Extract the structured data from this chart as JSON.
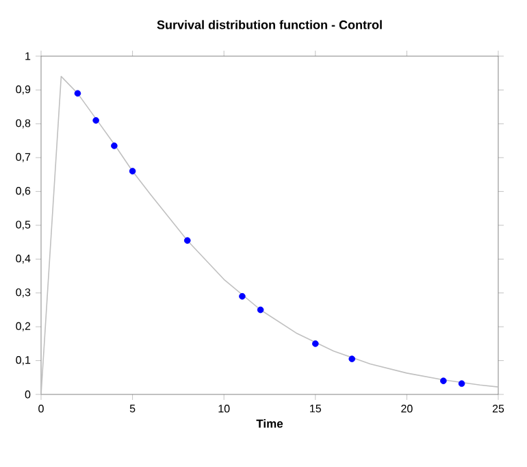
{
  "chart_data": {
    "type": "scatter",
    "title": "Survival distribution function - Control",
    "xlabel": "Time",
    "xlim": [
      0,
      25
    ],
    "xticks": [
      0,
      5,
      10,
      15,
      20,
      25
    ],
    "ylim": [
      0,
      1
    ],
    "yticks": [
      0,
      {
        "value": 0.1,
        "label": "0,1"
      },
      {
        "value": 0.2,
        "label": "0,2"
      },
      {
        "value": 0.3,
        "label": "0,3"
      },
      {
        "value": 0.4,
        "label": "0,4"
      },
      {
        "value": 0.5,
        "label": "0,5"
      },
      {
        "value": 0.6,
        "label": "0,6"
      },
      {
        "value": 0.7,
        "label": "0,7"
      },
      {
        "value": 0.8,
        "label": "0,8"
      },
      {
        "value": 0.9,
        "label": "0,9"
      },
      1
    ],
    "grid": false,
    "series": [
      {
        "type": "line",
        "color": "#c0c0c0",
        "marker": "none",
        "x": [
          0,
          1.1,
          2,
          3,
          4,
          5,
          6,
          8,
          10,
          12,
          14,
          16,
          18,
          20,
          22,
          24,
          25
        ],
        "values": [
          0,
          0.94,
          0.89,
          0.815,
          0.74,
          0.66,
          0.59,
          0.455,
          0.34,
          0.25,
          0.18,
          0.128,
          0.09,
          0.063,
          0.043,
          0.028,
          0.022
        ]
      },
      {
        "color": "#0000ff",
        "marker": "circle",
        "x": [
          2,
          3,
          4,
          5,
          8,
          11,
          12,
          15,
          17,
          22,
          23
        ],
        "values": [
          0.89,
          0.81,
          0.735,
          0.66,
          0.455,
          0.29,
          0.25,
          0.15,
          0.105,
          0.04,
          0.032
        ]
      }
    ]
  }
}
